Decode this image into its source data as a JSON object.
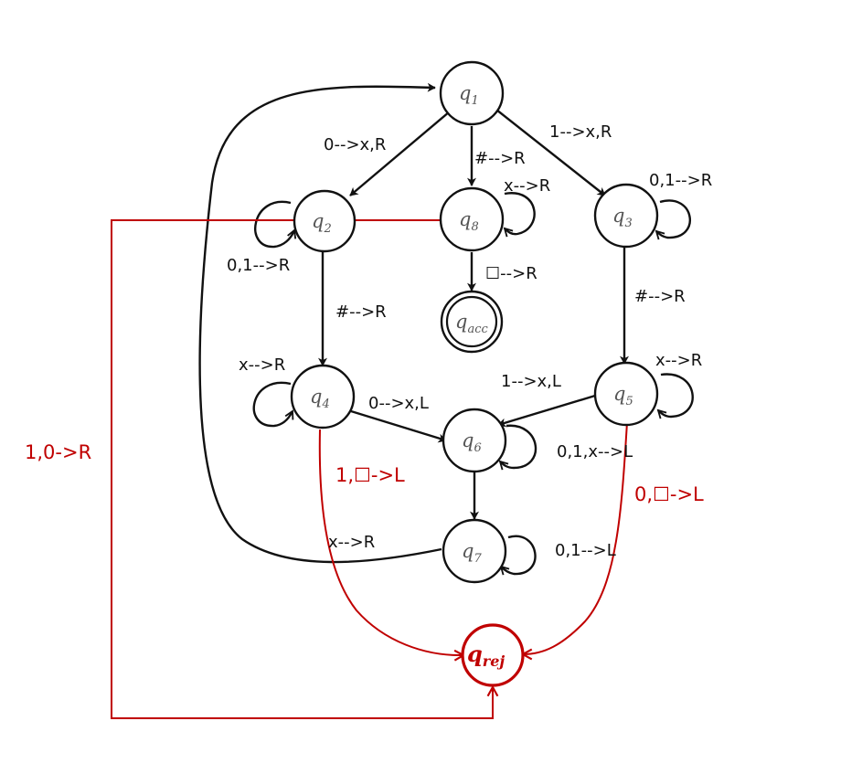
{
  "colors": {
    "normal": "#111111",
    "reject": "#c00000"
  },
  "states": {
    "q1": {
      "name": "q",
      "sub": "1"
    },
    "q2": {
      "name": "q",
      "sub": "2"
    },
    "q3": {
      "name": "q",
      "sub": "3"
    },
    "q4": {
      "name": "q",
      "sub": "4"
    },
    "q5": {
      "name": "q",
      "sub": "5"
    },
    "q6": {
      "name": "q",
      "sub": "6"
    },
    "q7": {
      "name": "q",
      "sub": "7"
    },
    "q8": {
      "name": "q",
      "sub": "8"
    },
    "qacc": {
      "name": "q",
      "sub": "acc"
    },
    "qrej": {
      "name": "q",
      "sub": "rej"
    }
  },
  "transitions": {
    "q1_q2": "0-->x,R",
    "q1_q8": "#-->R",
    "q1_q3": "1-->x,R",
    "q2_loop": "0,1-->R",
    "q8_loop": "x-->R",
    "q3_loop": "0,1-->R",
    "q8_qacc": "☐-->R",
    "q2_q4": "#-->R",
    "q3_q5": "#-->R",
    "q4_loop": "x-->R",
    "q5_loop": "x-->R",
    "q4_q6": "0-->x,L",
    "q5_q6": "1-->x,L",
    "q6_loop": "0,1,x-->L",
    "q7_loop": "0,1-->L",
    "q7_q1": "x-->R",
    "q2_qrej": "1,0->R",
    "q4_qrej": "1,☐->L",
    "q5_qrej": "0,☐->L"
  }
}
